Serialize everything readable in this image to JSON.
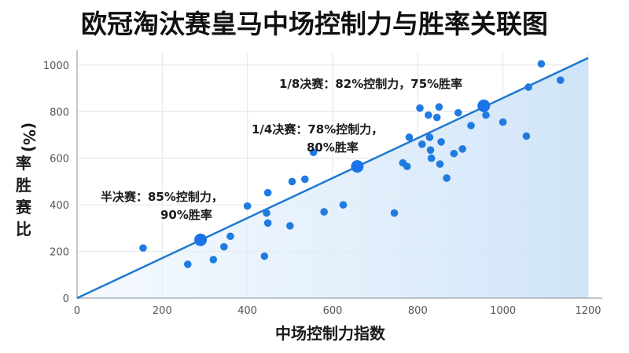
{
  "chart_data": {
    "type": "scatter",
    "title": "欧冠淘汰赛皇马中场控制力与胜率关联图",
    "xlabel": "中场控制力指数",
    "ylabel_lines": [
      "率",
      "胜",
      "赛",
      "比"
    ],
    "ylabel_unit": "(%)",
    "xlim": [
      0,
      1200
    ],
    "ylim": [
      0,
      1050
    ],
    "x_ticks": [
      0,
      200,
      400,
      600,
      800,
      1000,
      1200
    ],
    "y_ticks": [
      0,
      200,
      400,
      600,
      800,
      1000
    ],
    "grid": true,
    "trend_line": {
      "x": [
        0,
        1200
      ],
      "y": [
        0,
        1030
      ]
    },
    "points": [
      {
        "x": 155,
        "y": 215
      },
      {
        "x": 260,
        "y": 145
      },
      {
        "x": 320,
        "y": 165
      },
      {
        "x": 345,
        "y": 220
      },
      {
        "x": 360,
        "y": 265
      },
      {
        "x": 400,
        "y": 395
      },
      {
        "x": 440,
        "y": 180
      },
      {
        "x": 445,
        "y": 365
      },
      {
        "x": 448,
        "y": 322
      },
      {
        "x": 448,
        "y": 452
      },
      {
        "x": 500,
        "y": 310
      },
      {
        "x": 505,
        "y": 500
      },
      {
        "x": 535,
        "y": 510
      },
      {
        "x": 555,
        "y": 625
      },
      {
        "x": 580,
        "y": 370
      },
      {
        "x": 625,
        "y": 400
      },
      {
        "x": 745,
        "y": 365
      },
      {
        "x": 765,
        "y": 580
      },
      {
        "x": 775,
        "y": 565
      },
      {
        "x": 780,
        "y": 690
      },
      {
        "x": 805,
        "y": 815
      },
      {
        "x": 810,
        "y": 660
      },
      {
        "x": 825,
        "y": 785
      },
      {
        "x": 828,
        "y": 690
      },
      {
        "x": 830,
        "y": 635
      },
      {
        "x": 832,
        "y": 600
      },
      {
        "x": 845,
        "y": 775
      },
      {
        "x": 850,
        "y": 820
      },
      {
        "x": 852,
        "y": 575
      },
      {
        "x": 855,
        "y": 670
      },
      {
        "x": 868,
        "y": 515
      },
      {
        "x": 885,
        "y": 620
      },
      {
        "x": 895,
        "y": 795
      },
      {
        "x": 905,
        "y": 640
      },
      {
        "x": 925,
        "y": 740
      },
      {
        "x": 960,
        "y": 785
      },
      {
        "x": 1000,
        "y": 755
      },
      {
        "x": 1055,
        "y": 695
      },
      {
        "x": 1060,
        "y": 905
      },
      {
        "x": 1090,
        "y": 1005
      },
      {
        "x": 1135,
        "y": 935
      }
    ],
    "highlights": [
      {
        "x": 290,
        "y": 250,
        "lines": [
          "半决赛：85%控制力，",
          "90%胜率"
        ]
      },
      {
        "x": 658,
        "y": 565,
        "lines": [
          "1/4决赛：78%控制力，",
          "80%胜率"
        ]
      },
      {
        "x": 955,
        "y": 825,
        "lines": [
          "1/8决赛：82%控制力，75%胜率"
        ]
      }
    ],
    "colors": {
      "point": "#1f7be0",
      "highlight": "#1a73e8",
      "line": "#1f78d1",
      "fill": "#cfe4f8",
      "grid": "#dfe6ee"
    }
  }
}
